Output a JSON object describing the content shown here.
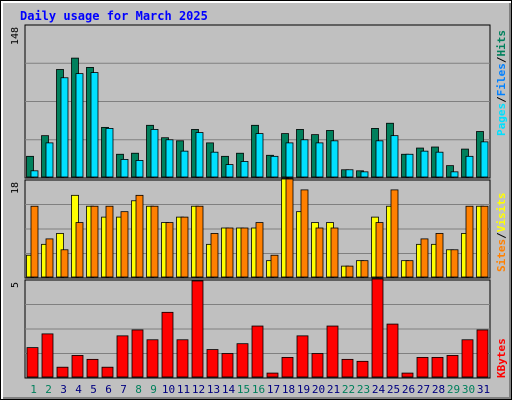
{
  "chart_data": {
    "type": "bar",
    "title": "Daily usage for March 2025",
    "days": [
      "1",
      "2",
      "3",
      "4",
      "5",
      "6",
      "7",
      "8",
      "9",
      "10",
      "11",
      "12",
      "13",
      "14",
      "15",
      "16",
      "17",
      "18",
      "19",
      "20",
      "21",
      "22",
      "23",
      "24",
      "25",
      "26",
      "27",
      "28",
      "29",
      "30",
      "31"
    ],
    "weekend_days": [
      "1",
      "2",
      "8",
      "9",
      "15",
      "16",
      "22",
      "23",
      "29",
      "30"
    ],
    "panels": [
      {
        "name": "hits-files-pages",
        "ymax": 148,
        "ymax_label": "148",
        "series": [
          {
            "name": "Hits",
            "color": "#00805c",
            "values": [
              20,
              40,
              104,
              115,
              106,
              48,
              22,
              23,
              50,
              38,
              35,
              46,
              33,
              20,
              23,
              50,
              21,
              42,
              46,
              41,
              45,
              7,
              6,
              47,
              52,
              22,
              28,
              29,
              11,
              27,
              44
            ]
          },
          {
            "name": "Files",
            "color": "#0080ff",
            "values": [
              6,
              33,
              96,
              100,
              101,
              47,
              17,
              16,
              46,
              36,
              25,
              43,
              24,
              12,
              15,
              42,
              20,
              33,
              36,
              33,
              35,
              7,
              5,
              35,
              40,
              22,
              25,
              24,
              5,
              20,
              34
            ]
          },
          {
            "name": "Pages",
            "color": "#00e0ff",
            "values": [
              6,
              33,
              96,
              100,
              101,
              47,
              17,
              16,
              46,
              36,
              25,
              43,
              24,
              12,
              15,
              42,
              20,
              33,
              36,
              33,
              35,
              7,
              5,
              35,
              40,
              22,
              25,
              24,
              5,
              20,
              34
            ]
          }
        ]
      },
      {
        "name": "visits-sites",
        "ymax": 18,
        "ymax_label": "18",
        "series": [
          {
            "name": "Visits",
            "color": "#ffff00",
            "values": [
              4,
              6,
              8,
              15,
              13,
              11,
              11,
              14,
              13,
              10,
              11,
              13,
              6,
              9,
              9,
              9,
              3,
              18,
              12,
              10,
              10,
              2,
              3,
              11,
              13,
              3,
              6,
              6,
              5,
              8,
              13
            ]
          },
          {
            "name": "Sites",
            "color": "#ff8000",
            "values": [
              13,
              7,
              5,
              10,
              13,
              13,
              12,
              15,
              13,
              10,
              11,
              13,
              8,
              9,
              9,
              10,
              4,
              18,
              16,
              9,
              9,
              2,
              3,
              10,
              16,
              3,
              7,
              8,
              5,
              13,
              13
            ]
          }
        ]
      },
      {
        "name": "kbytes",
        "ymax": 5,
        "ymax_label": "5",
        "series": [
          {
            "name": "KBytes",
            "color": "#ff0000",
            "values": [
              1.5,
              2.2,
              0.5,
              1.1,
              0.9,
              0.5,
              2.1,
              2.4,
              1.9,
              3.3,
              1.9,
              4.9,
              1.4,
              1.2,
              1.7,
              2.6,
              0.2,
              1.0,
              2.1,
              1.2,
              2.6,
              0.9,
              0.8,
              5.1,
              2.7,
              0.2,
              1.0,
              1.0,
              1.1,
              1.9,
              2.4
            ]
          }
        ]
      }
    ],
    "right_labels": {
      "top": [
        "Pages",
        "Files",
        "Hits"
      ],
      "middle": [
        "Sites",
        "Visits"
      ],
      "bottom": [
        "KBytes"
      ]
    },
    "separator": "/",
    "colors": {
      "title": "#0000ff",
      "weekday_label": "#000080",
      "weekend_label": "#00805c",
      "background": "#c0c0c0",
      "plot_border": "#000000",
      "grid": "#808080"
    }
  }
}
